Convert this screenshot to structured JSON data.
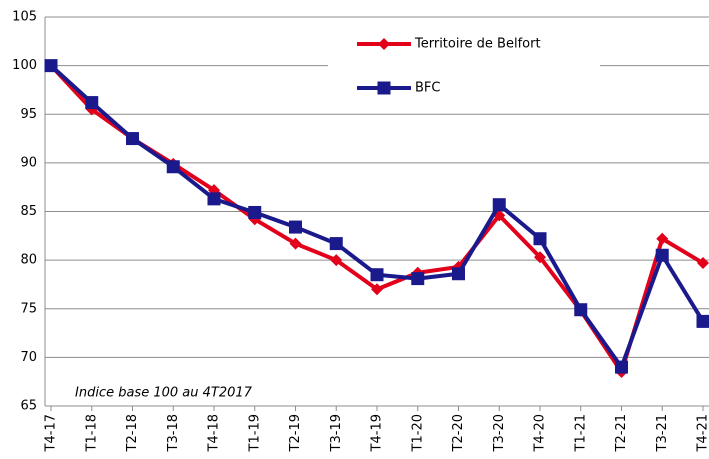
{
  "chart_data": {
    "type": "line",
    "annotation": "Indice base 100 au 4T2017",
    "categories": [
      "T4-17",
      "T1-18",
      "T2-18",
      "T3-18",
      "T4-18",
      "T1-19",
      "T2-19",
      "T3-19",
      "T4-19",
      "T1-20",
      "T2-20",
      "T3-20",
      "T4-20",
      "T1-21",
      "T2-21",
      "T3-21",
      "T4-21"
    ],
    "series": [
      {
        "name": "Territoire de Belfort",
        "color": "#e2001a",
        "marker": "diamond",
        "values": [
          100,
          95.5,
          92.5,
          89.9,
          87.2,
          84.2,
          81.7,
          80.0,
          77.0,
          78.7,
          79.3,
          84.6,
          80.3,
          74.8,
          68.5,
          82.2,
          79.7
        ]
      },
      {
        "name": "BFC",
        "color": "#1a1a8c",
        "marker": "square",
        "values": [
          100,
          96.2,
          92.5,
          89.6,
          86.3,
          84.9,
          83.4,
          81.7,
          78.5,
          78.1,
          78.6,
          85.7,
          82.2,
          74.9,
          69.0,
          80.5,
          73.7
        ]
      }
    ],
    "ylim": [
      65,
      105
    ],
    "yticks": [
      65,
      70,
      75,
      80,
      85,
      90,
      95,
      100,
      105
    ],
    "grid": true
  }
}
